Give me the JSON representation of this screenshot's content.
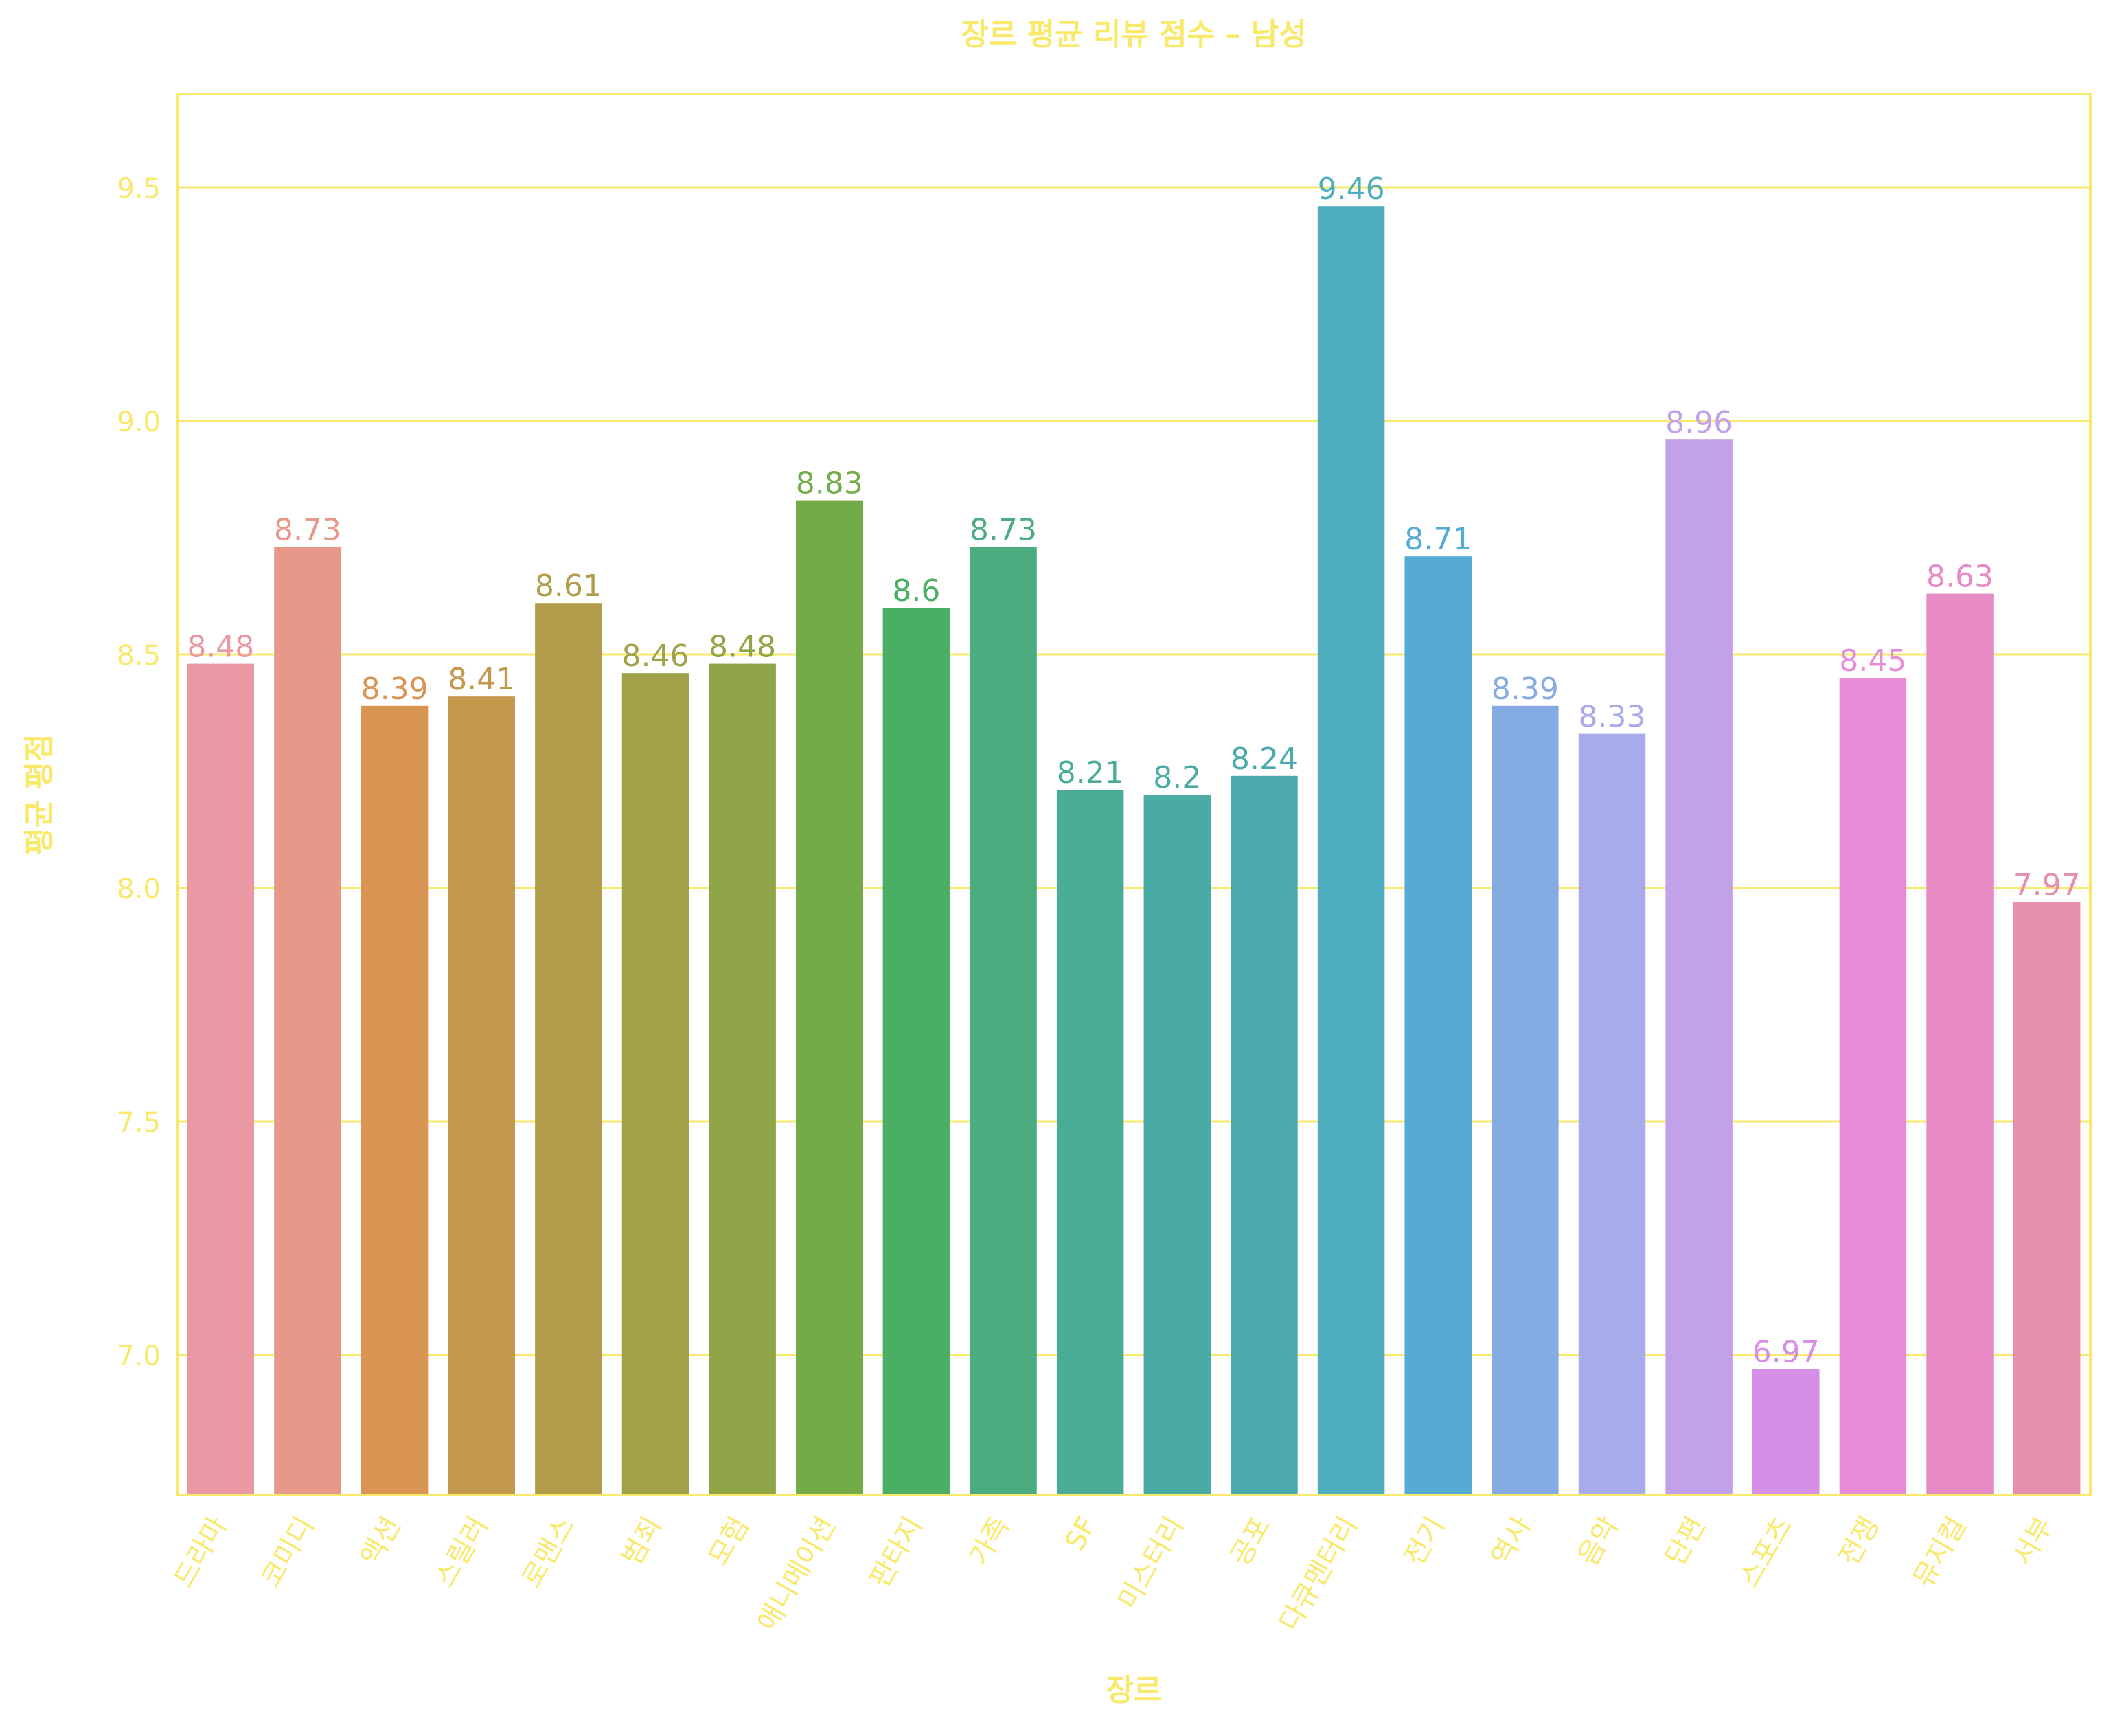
{
  "chart_data": {
    "type": "bar",
    "title": "장르 평균 리뷰 점수 – 남성",
    "xlabel": "장르",
    "ylabel": "평균 평점",
    "ylim": [
      6.7,
      9.7
    ],
    "yticks": [
      7.0,
      7.5,
      8.0,
      8.5,
      9.0,
      9.5
    ],
    "ytick_labels": [
      "7.0",
      "7.5",
      "8.0",
      "8.5",
      "9.0",
      "9.5"
    ],
    "grid": "y-axis on",
    "axis_text_color": "#f9e96a",
    "categories": [
      "드라마",
      "코미디",
      "액션",
      "스릴러",
      "로맨스",
      "범죄",
      "모험",
      "애니메이션",
      "판타지",
      "가족",
      "SF",
      "미스터리",
      "공포",
      "다큐멘터리",
      "전기",
      "역사",
      "음악",
      "단편",
      "스포츠",
      "전쟁",
      "뮤지컬",
      "서부"
    ],
    "values": [
      8.48,
      8.73,
      8.39,
      8.41,
      8.61,
      8.46,
      8.48,
      8.83,
      8.6,
      8.73,
      8.21,
      8.2,
      8.24,
      9.46,
      8.71,
      8.39,
      8.33,
      8.96,
      6.97,
      8.45,
      8.63,
      7.97
    ],
    "value_labels": [
      "8.48",
      "8.73",
      "8.39",
      "8.41",
      "8.61",
      "8.46",
      "8.48",
      "8.83",
      "8.6",
      "8.73",
      "8.21",
      "8.2",
      "8.24",
      "9.46",
      "8.71",
      "8.39",
      "8.33",
      "8.96",
      "6.97",
      "8.45",
      "8.63",
      "7.97"
    ],
    "colors": [
      "#ea98a3",
      "#e89888",
      "#da9453",
      "#c3994e",
      "#b09c4a",
      "#a1a14a",
      "#90a548",
      "#72ab48",
      "#4aaf64",
      "#4bac80",
      "#4aab96",
      "#4aaba5",
      "#4aaaae",
      "#4eaebf",
      "#55abd3",
      "#85abe3",
      "#a8abea",
      "#c3a1ea",
      "#d58fe6",
      "#e78cd6",
      "#e88bc4",
      "#e68fae"
    ]
  }
}
